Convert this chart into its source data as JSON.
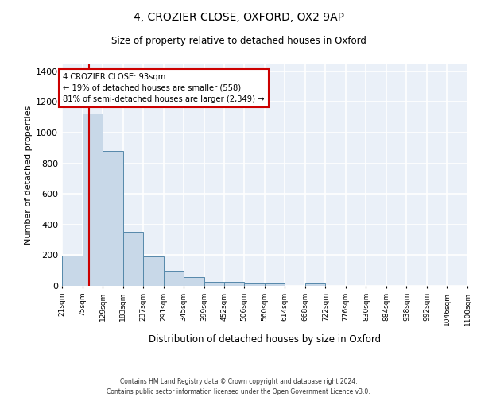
{
  "title1": "4, CROZIER CLOSE, OXFORD, OX2 9AP",
  "title2": "Size of property relative to detached houses in Oxford",
  "xlabel": "Distribution of detached houses by size in Oxford",
  "ylabel": "Number of detached properties",
  "bin_labels": [
    "21sqm",
    "75sqm",
    "129sqm",
    "183sqm",
    "237sqm",
    "291sqm",
    "345sqm",
    "399sqm",
    "452sqm",
    "506sqm",
    "560sqm",
    "614sqm",
    "668sqm",
    "722sqm",
    "776sqm",
    "830sqm",
    "884sqm",
    "938sqm",
    "992sqm",
    "1046sqm",
    "1100sqm"
  ],
  "bar_heights": [
    197,
    1125,
    878,
    350,
    192,
    100,
    55,
    25,
    25,
    18,
    18,
    0,
    15,
    0,
    0,
    0,
    0,
    0,
    0,
    0
  ],
  "bar_color": "#c8d8e8",
  "bar_edge_color": "#5588aa",
  "bin_edges": [
    21,
    75,
    129,
    183,
    237,
    291,
    345,
    399,
    452,
    506,
    560,
    614,
    668,
    722,
    776,
    830,
    884,
    938,
    992,
    1046,
    1100
  ],
  "property_size": 93,
  "vline_color": "#cc0000",
  "annotation_text": "4 CROZIER CLOSE: 93sqm\n← 19% of detached houses are smaller (558)\n81% of semi-detached houses are larger (2,349) →",
  "annotation_box_color": "#ffffff",
  "annotation_border_color": "#cc0000",
  "ylim": [
    0,
    1450
  ],
  "yticks": [
    0,
    200,
    400,
    600,
    800,
    1000,
    1200,
    1400
  ],
  "background_color": "#eaf0f8",
  "grid_color": "#ffffff",
  "footer1": "Contains HM Land Registry data © Crown copyright and database right 2024.",
  "footer2": "Contains public sector information licensed under the Open Government Licence v3.0."
}
